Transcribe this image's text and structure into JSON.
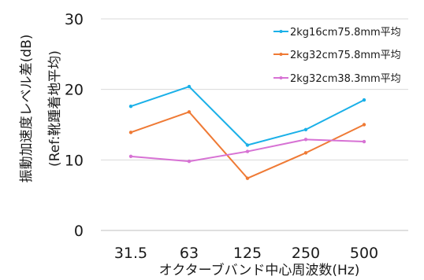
{
  "chart_data": {
    "type": "line",
    "categories": [
      "31.5",
      "63",
      "125",
      "250",
      "500"
    ],
    "xlabel": "オクターブバンド中心周波数(Hz)",
    "ylabel": "振動加速度レベル差(dB)",
    "ylabel2": "(Ref:靴踵着地平均)",
    "ylim": [
      0,
      30
    ],
    "yticks": [
      "0",
      "10",
      "20",
      "30"
    ],
    "grid": "horizontal",
    "legend_position": "top-right",
    "series": [
      {
        "name": "2kg16cm75.8mm平均",
        "color": "#1ab0e8",
        "values": [
          17.6,
          20.4,
          12.1,
          14.3,
          18.5
        ]
      },
      {
        "name": "2kg32cm75.8mm平均",
        "color": "#ef7a35",
        "values": [
          13.9,
          16.8,
          7.4,
          11.0,
          15.0
        ]
      },
      {
        "name": "2kg32cm38.3mm平均",
        "color": "#d772d4",
        "values": [
          10.5,
          9.8,
          11.2,
          12.9,
          12.6
        ]
      }
    ]
  }
}
